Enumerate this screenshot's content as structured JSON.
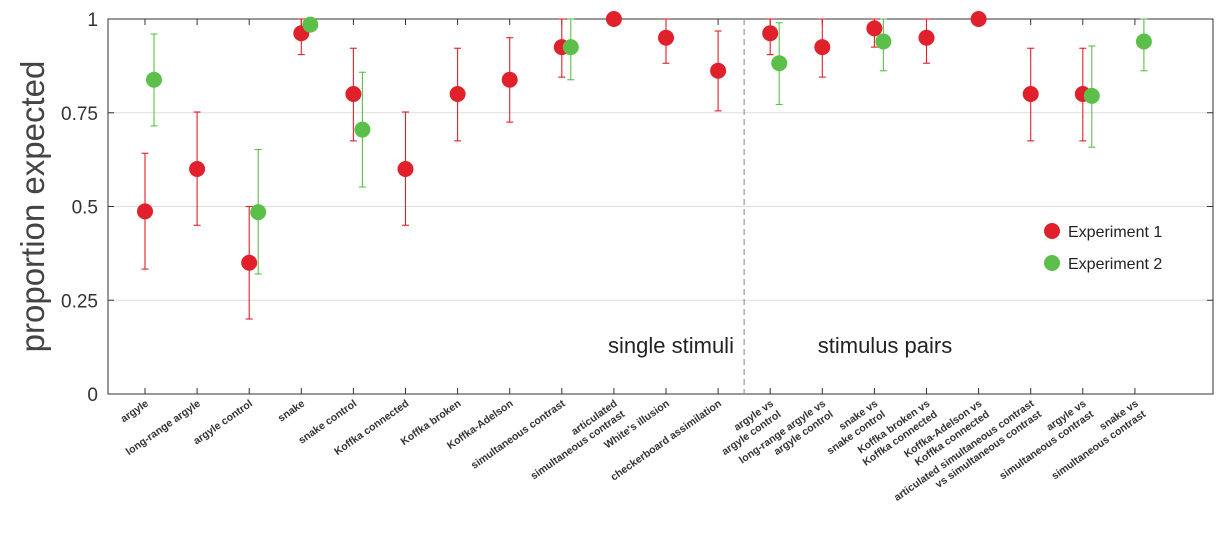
{
  "chart_data": {
    "type": "scatter",
    "ylabel": "proportion expected",
    "ylim": [
      0,
      1
    ],
    "yticks": [
      {
        "value": 0,
        "label": "0"
      },
      {
        "value": 0.25,
        "label": "0.25"
      },
      {
        "value": 0.5,
        "label": "0.5"
      },
      {
        "value": 0.75,
        "label": "0.75"
      },
      {
        "value": 1,
        "label": "1"
      }
    ],
    "grid": "horizontal",
    "categories": [
      [
        "argyle"
      ],
      [
        "long-range argyle"
      ],
      [
        "argyle control"
      ],
      [
        "snake"
      ],
      [
        "snake control"
      ],
      [
        "Koffka connected"
      ],
      [
        "Koffka broken"
      ],
      [
        "Koffka-Adelson"
      ],
      [
        "simultaneous contrast"
      ],
      [
        "articulated",
        "simultaneous contrast"
      ],
      [
        "White's illusion"
      ],
      [
        "checkerboard assimilation"
      ],
      [
        "argyle vs",
        "argyle control"
      ],
      [
        "long-range argyle vs",
        "argyle control"
      ],
      [
        "snake vs",
        "snake control"
      ],
      [
        "Koffka broken vs",
        "Koffka connected"
      ],
      [
        "Koffka-Adelson vs",
        "Koffka connected"
      ],
      [
        "articulated simultaneous contrast",
        "vs simultaneous contrast"
      ],
      [
        "argyle vs",
        "simultaneous contrast"
      ],
      [
        "snake vs",
        "simultaneous contrast"
      ]
    ],
    "divider_after_index": 11,
    "annotations": [
      "single stimuli",
      "stimulus pairs"
    ],
    "legend_placement": "right",
    "series": [
      {
        "name": "Experiment 1",
        "color": "#e0202a",
        "values": [
          0.487,
          0.6,
          0.35,
          0.962,
          0.8,
          0.6,
          0.8,
          0.838,
          0.925,
          1.0,
          0.95,
          0.862,
          0.962,
          0.925,
          0.975,
          0.95,
          1.0,
          0.8,
          0.8,
          null
        ],
        "err_low": [
          0.333,
          0.45,
          0.2,
          0.905,
          0.675,
          0.45,
          0.675,
          0.725,
          0.845,
          1.0,
          0.882,
          0.755,
          0.905,
          0.845,
          0.925,
          0.882,
          1.0,
          0.675,
          0.675,
          null
        ],
        "err_high": [
          0.642,
          0.752,
          0.5,
          1.0,
          0.922,
          0.752,
          0.922,
          0.95,
          1.0,
          1.0,
          1.0,
          0.968,
          1.0,
          1.0,
          1.0,
          1.0,
          1.0,
          0.922,
          0.922,
          null
        ]
      },
      {
        "name": "Experiment 2",
        "color": "#5cbf4a",
        "values": [
          0.838,
          null,
          0.485,
          0.985,
          0.705,
          null,
          null,
          null,
          0.925,
          null,
          null,
          null,
          0.882,
          null,
          0.94,
          null,
          null,
          null,
          0.795,
          0.94
        ],
        "err_low": [
          0.715,
          null,
          0.32,
          0.985,
          0.552,
          null,
          null,
          null,
          0.838,
          null,
          null,
          null,
          0.772,
          null,
          0.862,
          null,
          null,
          null,
          0.658,
          0.862
        ],
        "err_high": [
          0.96,
          null,
          0.652,
          1.0,
          0.858,
          null,
          null,
          null,
          1.0,
          null,
          null,
          null,
          0.99,
          null,
          1.0,
          null,
          null,
          null,
          0.928,
          1.0
        ]
      }
    ]
  }
}
